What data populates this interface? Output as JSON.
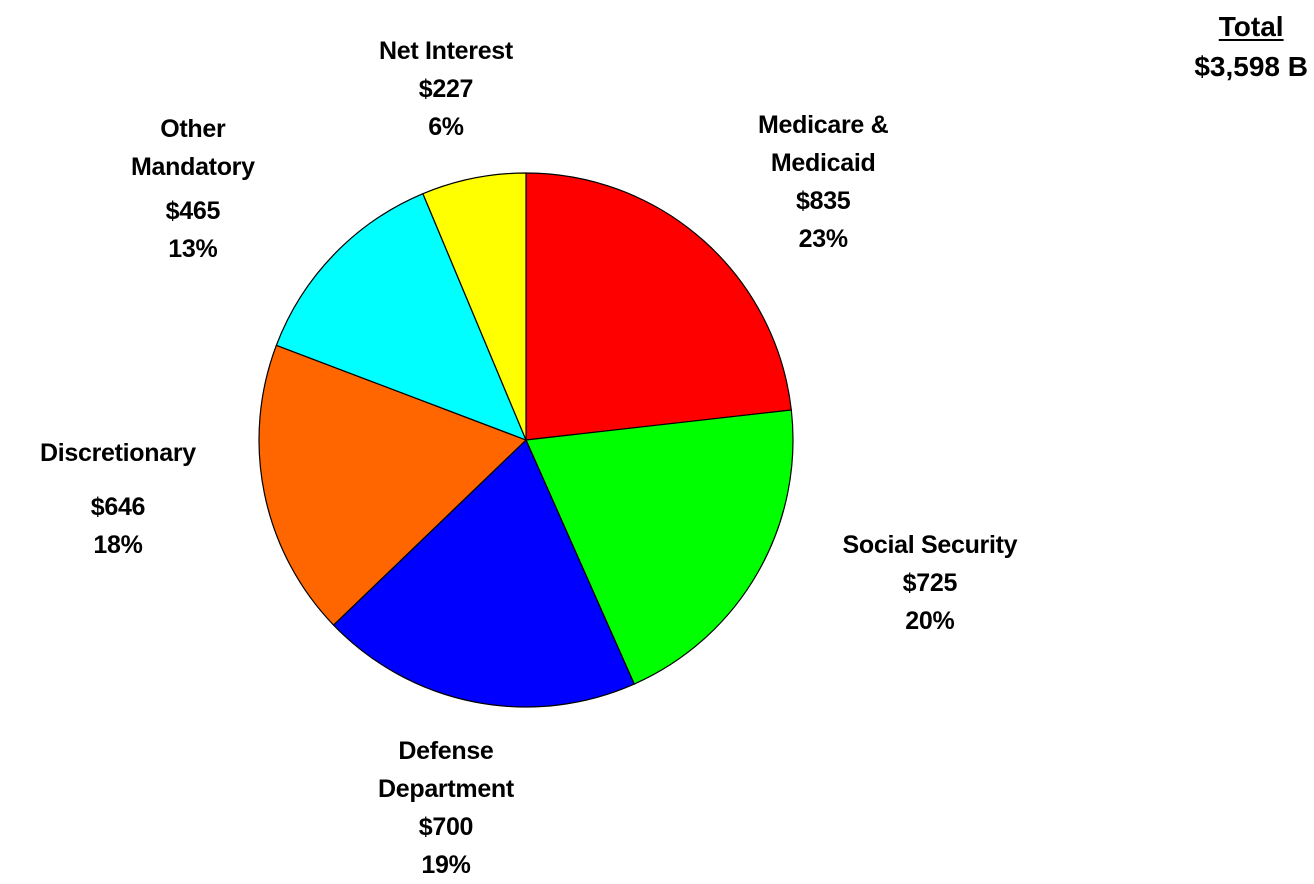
{
  "total": {
    "heading": "Total",
    "value": "$3,598 B"
  },
  "chart_data": {
    "type": "pie",
    "title": "",
    "unit": "$B",
    "total": 3598,
    "slices": [
      {
        "name": "Medicare & Medicaid",
        "lines": [
          "Medicare &",
          "Medicaid"
        ],
        "value": 835,
        "value_label": "$835",
        "percent": 23,
        "percent_label": "23%",
        "color": "#ff0000"
      },
      {
        "name": "Social Security",
        "lines": [
          "Social Security"
        ],
        "value": 725,
        "value_label": "$725",
        "percent": 20,
        "percent_label": "20%",
        "color": "#00ff00"
      },
      {
        "name": "Defense Department",
        "lines": [
          "Defense",
          "Department"
        ],
        "value": 700,
        "value_label": "$700",
        "percent": 19,
        "percent_label": "19%",
        "color": "#0000ff"
      },
      {
        "name": "Discretionary",
        "lines": [
          "Discretionary"
        ],
        "value": 646,
        "value_label": "$646",
        "percent": 18,
        "percent_label": "18%",
        "color": "#ff6600"
      },
      {
        "name": "Other Mandatory",
        "lines": [
          "Other",
          "Mandatory"
        ],
        "value": 465,
        "value_label": "$465",
        "percent": 13,
        "percent_label": "13%",
        "color": "#00ffff"
      },
      {
        "name": "Net Interest",
        "lines": [
          "Net Interest"
        ],
        "value": 227,
        "value_label": "$227",
        "percent": 6,
        "percent_label": "6%",
        "color": "#ffff00"
      }
    ],
    "start_angle": "12 o'clock",
    "direction": "clockwise",
    "legend": "none"
  }
}
